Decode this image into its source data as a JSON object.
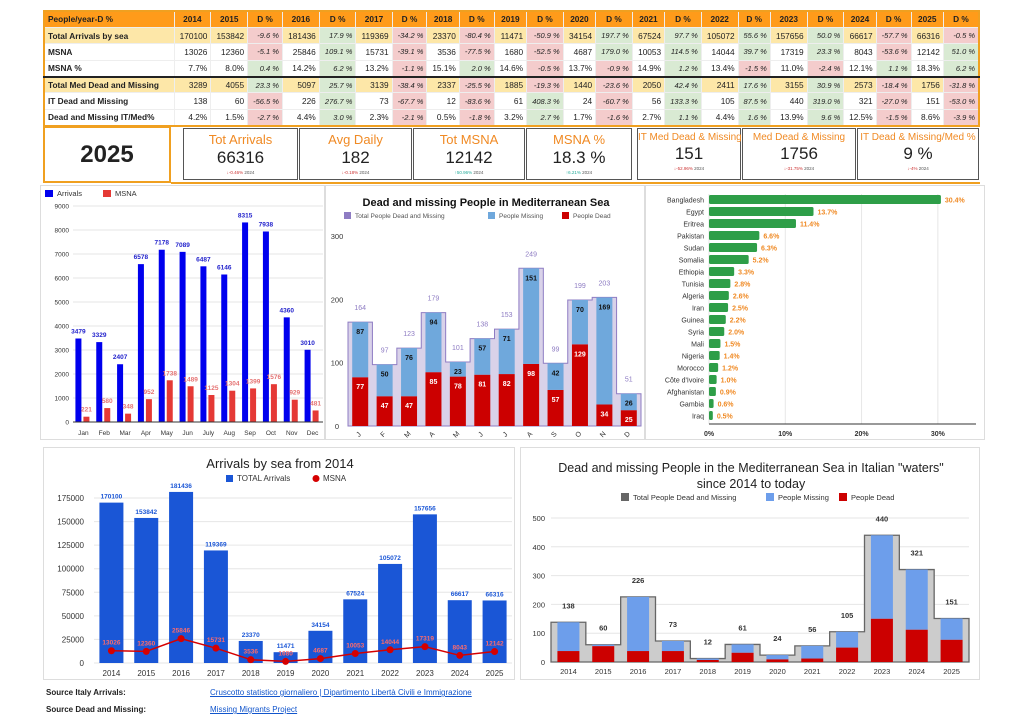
{
  "table": {
    "header": [
      "People/year-D %",
      "2014",
      "2015",
      "D %",
      "2016",
      "D %",
      "2017",
      "D %",
      "2018",
      "D %",
      "2019",
      "D %",
      "2020",
      "D %",
      "2021",
      "D %",
      "2022",
      "D %",
      "2023",
      "D %",
      "2024",
      "D %",
      "2025",
      "D %"
    ],
    "rows": [
      {
        "label": "Total Arrivals by sea",
        "cells": [
          "170100",
          "153842",
          "-9.6 %",
          "181436",
          "17.9 %",
          "119369",
          "-34.2 %",
          "23370",
          "-80.4 %",
          "11471",
          "-50.9 %",
          "34154",
          "197.7 %",
          "67524",
          "97.7 %",
          "105072",
          "55.6 %",
          "157656",
          "50.0 %",
          "66617",
          "-57.7 %",
          "66316",
          "-0.5 %"
        ]
      },
      {
        "label": "MSNA",
        "cells": [
          "13026",
          "12360",
          "-5.1 %",
          "25846",
          "109.1 %",
          "15731",
          "-39.1 %",
          "3536",
          "-77.5 %",
          "1680",
          "-52.5 %",
          "4687",
          "179.0 %",
          "10053",
          "114.5 %",
          "14044",
          "39.7 %",
          "17319",
          "23.3 %",
          "8043",
          "-53.6 %",
          "12142",
          "51.0 %"
        ]
      },
      {
        "label": "MSNA %",
        "cells": [
          "7.7%",
          "8.0%",
          "0.4 %",
          "14.2%",
          "6.2 %",
          "13.2%",
          "-1.1 %",
          "15.1%",
          "2.0 %",
          "14.6%",
          "-0.5 %",
          "13.7%",
          "-0.9 %",
          "14.9%",
          "1.2 %",
          "13.4%",
          "-1.5 %",
          "11.0%",
          "-2.4 %",
          "12.1%",
          "1.1 %",
          "18.3%",
          "6.2 %"
        ]
      },
      {
        "label": "Total Med Dead and Missing",
        "cells": [
          "3289",
          "4055",
          "23.3 %",
          "5097",
          "25.7 %",
          "3139",
          "-38.4 %",
          "2337",
          "-25.5 %",
          "1885",
          "-19.3 %",
          "1440",
          "-23.6 %",
          "2050",
          "42.4 %",
          "2411",
          "17.6 %",
          "3155",
          "30.9 %",
          "2573",
          "-18.4 %",
          "1756",
          "-31.8 %"
        ]
      },
      {
        "label": "IT Dead and Missing",
        "cells": [
          "138",
          "60",
          "-56.5 %",
          "226",
          "276.7 %",
          "73",
          "-67.7 %",
          "12",
          "-83.6 %",
          "61",
          "408.3 %",
          "24",
          "-60.7 %",
          "56",
          "133.3 %",
          "105",
          "87.5 %",
          "440",
          "319.0 %",
          "321",
          "-27.0 %",
          "151",
          "-53.0 %"
        ]
      },
      {
        "label": "Dead and Missing IT/Med%",
        "cells": [
          "4.2%",
          "1.5%",
          "-2.7 %",
          "4.4%",
          "3.0 %",
          "2.3%",
          "-2.1 %",
          "0.5%",
          "-1.8 %",
          "3.2%",
          "2.7 %",
          "1.7%",
          "-1.6 %",
          "2.7%",
          "1.1 %",
          "4.4%",
          "1.6 %",
          "13.9%",
          "9.6 %",
          "12.5%",
          "-1.5 %",
          "8.6%",
          "-3.9 %"
        ]
      }
    ]
  },
  "kpi": {
    "year": "2025",
    "cards": [
      {
        "title": "Tot Arrivals",
        "value": "66316",
        "delta": "↓-0.46%",
        "ref": "2024",
        "trend": "down"
      },
      {
        "title": "Avg Daily",
        "value": "182",
        "delta": "↓-0.18%",
        "ref": "2024",
        "trend": "down"
      },
      {
        "title": "Tot MSNA",
        "value": "12142",
        "delta": "↑50.96%",
        "ref": "2024",
        "trend": "up"
      },
      {
        "title": "MSNA %",
        "value": "18.3 %",
        "delta": "↑6.21%",
        "ref": "2024",
        "trend": "up"
      },
      {
        "title": "IT Med Dead & Missing",
        "value": "151",
        "delta": "↓-52.96%",
        "ref": "2024",
        "trend": "down"
      },
      {
        "title": "Med Dead & Missing",
        "value": "1756",
        "delta": "↓-31.75%",
        "ref": "2024",
        "trend": "down"
      },
      {
        "title": "IT Dead & Missing/Med %",
        "value": "9 %",
        "delta": "↓-4%",
        "ref": "2024",
        "trend": "down"
      }
    ]
  },
  "chart_data": [
    {
      "type": "bar",
      "title": "",
      "categories": [
        "Jan",
        "Feb",
        "Mar",
        "Apr",
        "May",
        "Jun",
        "July",
        "Aug",
        "Sep",
        "Oct",
        "Nov",
        "Dec"
      ],
      "series": [
        {
          "name": "Arrivals",
          "color": "#0000ee",
          "values": [
            3479,
            3329,
            2407,
            6578,
            7178,
            7089,
            6487,
            6146,
            8315,
            7938,
            4360,
            3010
          ]
        },
        {
          "name": "MSNA",
          "color": "#e53935",
          "values": [
            221,
            580,
            348,
            952,
            1738,
            1489,
            1125,
            1304,
            1399,
            1576,
            929,
            481
          ]
        }
      ],
      "yticks": [
        "0",
        "1000",
        "2000",
        "3000",
        "4000",
        "5000",
        "6000",
        "7000",
        "8000",
        "9000"
      ],
      "ylim": [
        0,
        9000
      ],
      "legend": "top-left",
      "grid": true
    },
    {
      "type": "bar",
      "stacked": true,
      "title": "Dead and missing People in Mediterranean Sea",
      "categories": [
        "J",
        "F",
        "M",
        "A",
        "M",
        "J",
        "J",
        "A",
        "S",
        "O",
        "N",
        "D"
      ],
      "legend_labels": [
        "Total People Dead and Missing",
        "People Missing",
        "People Dead"
      ],
      "colors": {
        "total": "#8e7cc3",
        "missing": "#6fa8dc",
        "dead": "#cc0000"
      },
      "total": [
        164,
        97,
        123,
        179,
        101,
        138,
        153,
        249,
        99,
        199,
        203,
        51
      ],
      "missing": [
        87,
        50,
        76,
        94,
        23,
        57,
        71,
        151,
        42,
        70,
        169,
        26
      ],
      "dead": [
        77,
        47,
        47,
        85,
        78,
        81,
        82,
        98,
        57,
        129,
        34,
        25
      ],
      "yticks": [
        "0",
        "100",
        "200",
        "300"
      ],
      "ylim": [
        0,
        300
      ],
      "legend": "top"
    },
    {
      "type": "bar",
      "orientation": "horizontal",
      "title": "",
      "categories": [
        "Bangladesh",
        "Egypt",
        "Eritrea",
        "Pakistan",
        "Sudan",
        "Somalia",
        "Ethiopia",
        "Tunisia",
        "Algeria",
        "Iran",
        "Guinea",
        "Syria",
        "Mali",
        "Nigeria",
        "Morocco",
        "Côte d'Ivoire",
        "Afghanistan",
        "Gambia",
        "Iraq"
      ],
      "values": [
        30.4,
        13.7,
        11.4,
        6.6,
        6.3,
        5.2,
        3.3,
        2.8,
        2.6,
        2.5,
        2.2,
        2.0,
        1.5,
        1.4,
        1.2,
        1.0,
        0.9,
        0.6,
        0.5
      ],
      "labels": [
        "30.4%",
        "13.7%",
        "11.4%",
        "6.6%",
        "6.3%",
        "5.2%",
        "3.3%",
        "2.8%",
        "2.6%",
        "2.5%",
        "2.2%",
        "2.0%",
        "1.5%",
        "1.4%",
        "1.2%",
        "1.0%",
        "0.9%",
        "0.6%",
        "0.5%"
      ],
      "color": "#2e9e48",
      "label_color": "#f08a24",
      "xticks": [
        "0%",
        "10%",
        "20%",
        "30%"
      ],
      "xlim": [
        0,
        35
      ]
    },
    {
      "type": "bar",
      "title": "Arrivals by sea from 2014",
      "categories": [
        "2014",
        "2015",
        "2016",
        "2017",
        "2018",
        "2019",
        "2020",
        "2021",
        "2022",
        "2023",
        "2024",
        "2025"
      ],
      "series": [
        {
          "name": "TOTAL Arrivals",
          "color": "#1a56d6",
          "values": [
            170100,
            153842,
            181436,
            119369,
            23370,
            11471,
            34154,
            67524,
            105072,
            157656,
            66617,
            66316
          ]
        },
        {
          "name": "MSNA",
          "color": "#d50000",
          "values": [
            13026,
            12360,
            25846,
            15731,
            3536,
            1680,
            4687,
            10053,
            14044,
            17319,
            8043,
            12142
          ]
        }
      ],
      "yticks": [
        "0",
        "25000",
        "50000",
        "75000",
        "100000",
        "125000",
        "150000",
        "175000"
      ],
      "ylim": [
        0,
        187500
      ],
      "legend": "top"
    },
    {
      "type": "bar",
      "stacked": true,
      "title": "Dead and missing People in the Mediterranean Sea in Italian \"waters\" since 2014 to today",
      "title_lines": [
        "Dead and missing People in the Mediterranean Sea in Italian \"waters\"",
        "since 2014 to today"
      ],
      "categories": [
        "2014",
        "2015",
        "2016",
        "2017",
        "2018",
        "2019",
        "2020",
        "2021",
        "2022",
        "2023",
        "2024",
        "2025"
      ],
      "legend_labels": [
        "Total People Dead and Missing",
        "People Missing",
        "People Dead"
      ],
      "colors": {
        "total": "#666666",
        "missing": "#6d9eeb",
        "dead": "#cc0000",
        "area": "#cccccc"
      },
      "total": [
        138,
        60,
        226,
        73,
        12,
        61,
        24,
        56,
        105,
        440,
        321,
        151
      ],
      "dead": [
        38,
        55,
        38,
        38,
        7,
        32,
        9,
        12,
        50,
        150,
        112,
        77
      ],
      "yticks": [
        "0",
        "100",
        "200",
        "300",
        "400",
        "500"
      ],
      "ylim": [
        0,
        500
      ],
      "legend": "top"
    }
  ],
  "footer": {
    "arrivals_label": "Source Italy Arrivals:",
    "arrivals_link": "Cruscotto statistico giornaliero | Dipartimento Libertà Civili e Immigrazione",
    "dead_label": "Source Dead and Missing:",
    "dead_link": "Missing Migrants Project"
  }
}
